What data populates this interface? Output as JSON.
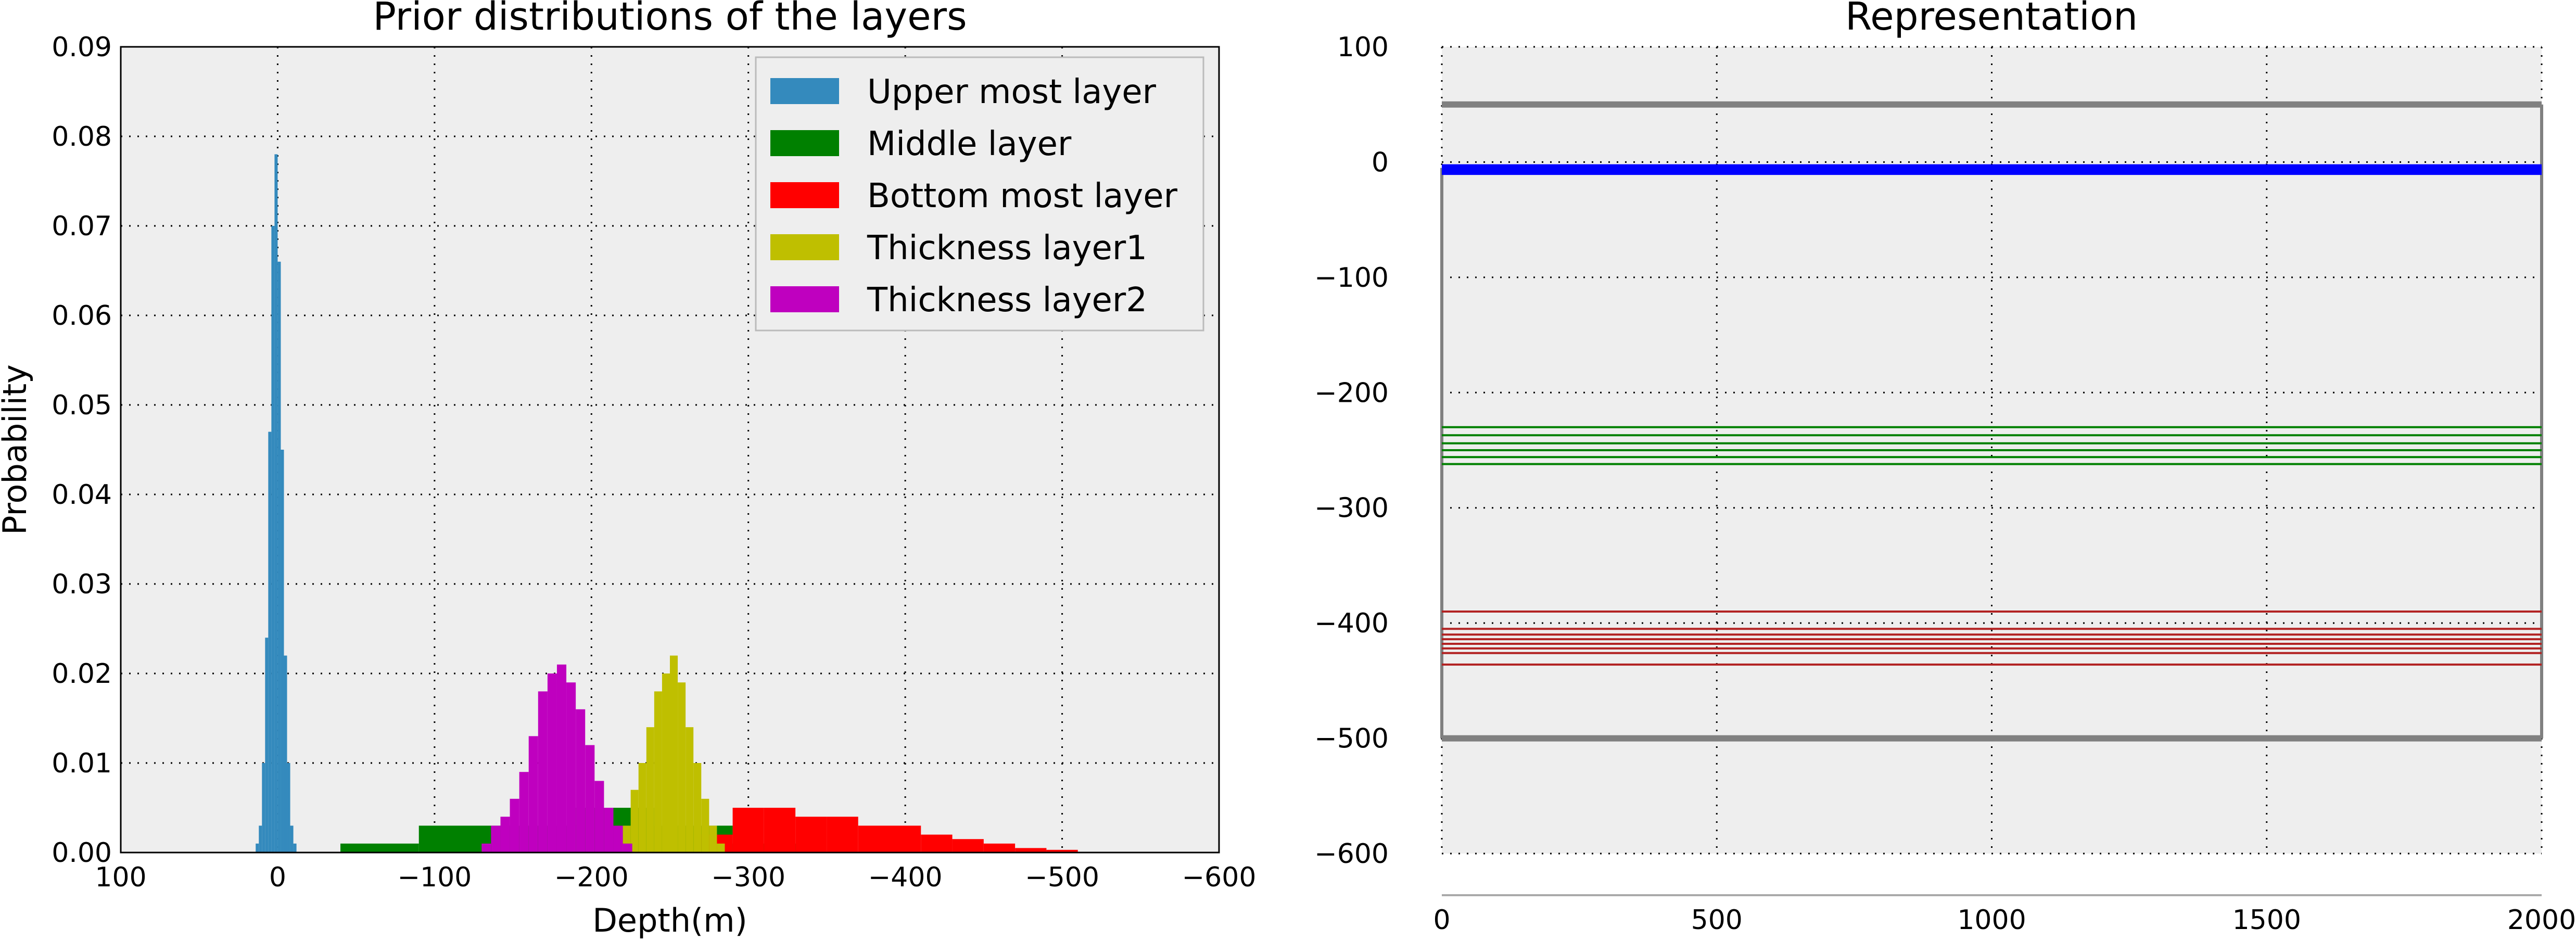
{
  "chart_data": [
    {
      "type": "bar",
      "title": "Prior distributions of the layers",
      "xlabel": "Depth(m)",
      "ylabel": "Probability",
      "x_inverted": true,
      "xlim": [
        100,
        -600
      ],
      "ylim": [
        0,
        0.09
      ],
      "xticks": [
        "100",
        "0",
        "−100",
        "−200",
        "−300",
        "−400",
        "−500",
        "−600"
      ],
      "xtick_values": [
        100,
        0,
        -100,
        -200,
        -300,
        -400,
        -500,
        -600
      ],
      "yticks": [
        "0.00",
        "0.01",
        "0.02",
        "0.03",
        "0.04",
        "0.05",
        "0.06",
        "0.07",
        "0.08",
        "0.09"
      ],
      "ytick_values": [
        0,
        0.01,
        0.02,
        0.03,
        0.04,
        0.05,
        0.06,
        0.07,
        0.08,
        0.09
      ],
      "grid": true,
      "legend_position": "top-right",
      "series": [
        {
          "name": "Upper most layer",
          "color": "#348abd",
          "bins": [
            [
              -12,
              -10,
              0.001
            ],
            [
              -10,
              -8,
              0.003
            ],
            [
              -8,
              -6,
              0.01
            ],
            [
              -6,
              -4,
              0.022
            ],
            [
              -4,
              -2,
              0.045
            ],
            [
              -2,
              0,
              0.066
            ],
            [
              0,
              2,
              0.078
            ],
            [
              2,
              4,
              0.07
            ],
            [
              4,
              6,
              0.047
            ],
            [
              6,
              8,
              0.024
            ],
            [
              8,
              10,
              0.01
            ],
            [
              10,
              12,
              0.003
            ],
            [
              12,
              14,
              0.001
            ]
          ]
        },
        {
          "name": "Middle layer",
          "color": "#008000",
          "bins": [
            [
              -40,
              -90,
              0.001
            ],
            [
              -90,
              -140,
              0.003
            ],
            [
              -140,
              -190,
              0.003
            ],
            [
              -190,
              -240,
              0.005
            ],
            [
              -240,
              -290,
              0.003
            ],
            [
              -290,
              -340,
              0.001
            ]
          ]
        },
        {
          "name": "Bottom most layer",
          "color": "#ff0000",
          "bins": [
            [
              -270,
              -290,
              0.002
            ],
            [
              -290,
              -310,
              0.005
            ],
            [
              -310,
              -330,
              0.005
            ],
            [
              -330,
              -350,
              0.004
            ],
            [
              -350,
              -370,
              0.004
            ],
            [
              -370,
              -390,
              0.003
            ],
            [
              -390,
              -410,
              0.003
            ],
            [
              -410,
              -430,
              0.002
            ],
            [
              -430,
              -450,
              0.0015
            ],
            [
              -450,
              -470,
              0.001
            ],
            [
              -470,
              -490,
              0.0005
            ],
            [
              -490,
              -510,
              0.0003
            ]
          ]
        },
        {
          "name": "Thickness layer1",
          "color": "#bfbf00",
          "bins": [
            [
              -220,
              -225,
              0.003
            ],
            [
              -225,
              -230,
              0.007
            ],
            [
              -230,
              -235,
              0.01
            ],
            [
              -235,
              -240,
              0.014
            ],
            [
              -240,
              -245,
              0.018
            ],
            [
              -245,
              -250,
              0.02
            ],
            [
              -250,
              -255,
              0.022
            ],
            [
              -255,
              -260,
              0.019
            ],
            [
              -260,
              -265,
              0.014
            ],
            [
              -265,
              -270,
              0.01
            ],
            [
              -270,
              -275,
              0.006
            ],
            [
              -275,
              -280,
              0.003
            ],
            [
              -280,
              -285,
              0.001
            ]
          ]
        },
        {
          "name": "Thickness layer2",
          "color": "#bf00bf",
          "bins": [
            [
              -130,
              -136,
              0.001
            ],
            [
              -136,
              -142,
              0.003
            ],
            [
              -142,
              -148,
              0.004
            ],
            [
              -148,
              -154,
              0.006
            ],
            [
              -154,
              -160,
              0.009
            ],
            [
              -160,
              -166,
              0.013
            ],
            [
              -166,
              -172,
              0.018
            ],
            [
              -172,
              -178,
              0.02
            ],
            [
              -178,
              -184,
              0.021
            ],
            [
              -184,
              -190,
              0.019
            ],
            [
              -190,
              -196,
              0.016
            ],
            [
              -196,
              -202,
              0.012
            ],
            [
              -202,
              -208,
              0.008
            ],
            [
              -208,
              -214,
              0.005
            ],
            [
              -214,
              -220,
              0.003
            ],
            [
              -220,
              -226,
              0.001
            ]
          ]
        }
      ]
    },
    {
      "type": "line",
      "title": "Representation",
      "xlim": [
        0,
        2000
      ],
      "ylim": [
        -600,
        100
      ],
      "xticks": [
        "0",
        "500",
        "1000",
        "1500",
        "2000"
      ],
      "xtick_values": [
        0,
        500,
        1000,
        1500,
        2000
      ],
      "yticks": [
        "100",
        "0",
        "−100",
        "−200",
        "−300",
        "−400",
        "−500",
        "−600"
      ],
      "ytick_values": [
        100,
        0,
        -100,
        -200,
        -300,
        -400,
        -500,
        -600
      ],
      "grid": true,
      "hlines": [
        {
          "y": 50,
          "color": "#808080",
          "width": 12
        },
        {
          "y": -500,
          "color": "#808080",
          "width": 12
        },
        {
          "y": -3,
          "color": "#0000ff",
          "width": 5
        },
        {
          "y": -5,
          "color": "#0000ff",
          "width": 5
        },
        {
          "y": -6,
          "color": "#0000ff",
          "width": 5
        },
        {
          "y": -8,
          "color": "#0000ff",
          "width": 5
        },
        {
          "y": -10,
          "color": "#0000ff",
          "width": 5
        },
        {
          "y": -230,
          "color": "#008000",
          "width": 4
        },
        {
          "y": -237,
          "color": "#008000",
          "width": 4
        },
        {
          "y": -244,
          "color": "#008000",
          "width": 4
        },
        {
          "y": -250,
          "color": "#008000",
          "width": 4
        },
        {
          "y": -256,
          "color": "#008000",
          "width": 4
        },
        {
          "y": -262,
          "color": "#008000",
          "width": 4
        },
        {
          "y": -390,
          "color": "#b22222",
          "width": 4
        },
        {
          "y": -405,
          "color": "#b22222",
          "width": 4
        },
        {
          "y": -410,
          "color": "#b22222",
          "width": 4
        },
        {
          "y": -414,
          "color": "#b22222",
          "width": 4
        },
        {
          "y": -418,
          "color": "#b22222",
          "width": 4
        },
        {
          "y": -422,
          "color": "#b22222",
          "width": 4
        },
        {
          "y": -426,
          "color": "#b22222",
          "width": 4
        },
        {
          "y": -436,
          "color": "#b22222",
          "width": 4
        }
      ],
      "vlines": [
        {
          "x": 0,
          "y_from": -500,
          "y_to": -5,
          "color": "#808080",
          "width": 6
        },
        {
          "x": 2000,
          "y_from": -500,
          "y_to": 50,
          "color": "#808080",
          "width": 6
        }
      ]
    }
  ]
}
